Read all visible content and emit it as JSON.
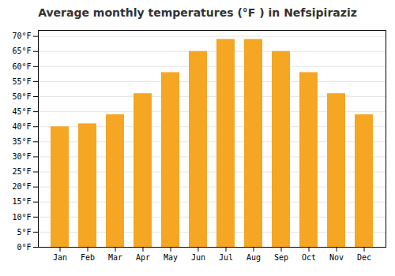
{
  "chart_data": {
    "type": "bar",
    "title": "Average monthly temperatures (°F ) in Nefsipiraziz",
    "categories": [
      "Jan",
      "Feb",
      "Mar",
      "Apr",
      "May",
      "Jun",
      "Jul",
      "Aug",
      "Sep",
      "Oct",
      "Nov",
      "Dec"
    ],
    "values": [
      40,
      41,
      44,
      51,
      58,
      65,
      69,
      69,
      65,
      58,
      51,
      44
    ],
    "color": "#F5A623",
    "ylim": [
      0,
      72
    ],
    "yticks": [
      {
        "value": 0,
        "label": "0°F"
      },
      {
        "value": 5,
        "label": "5°F"
      },
      {
        "value": 10,
        "label": "10°F"
      },
      {
        "value": 15,
        "label": "15°F"
      },
      {
        "value": 20,
        "label": "20°F"
      },
      {
        "value": 25,
        "label": "25°F"
      },
      {
        "value": 30,
        "label": "30°F"
      },
      {
        "value": 35,
        "label": "35°F"
      },
      {
        "value": 40,
        "label": "40°F"
      },
      {
        "value": 45,
        "label": "45°F"
      },
      {
        "value": 50,
        "label": "50°F"
      },
      {
        "value": 55,
        "label": "55°F"
      },
      {
        "value": 60,
        "label": "60°F"
      },
      {
        "value": 65,
        "label": "65°F"
      },
      {
        "value": 70,
        "label": "70°F"
      }
    ],
    "grid": true
  }
}
